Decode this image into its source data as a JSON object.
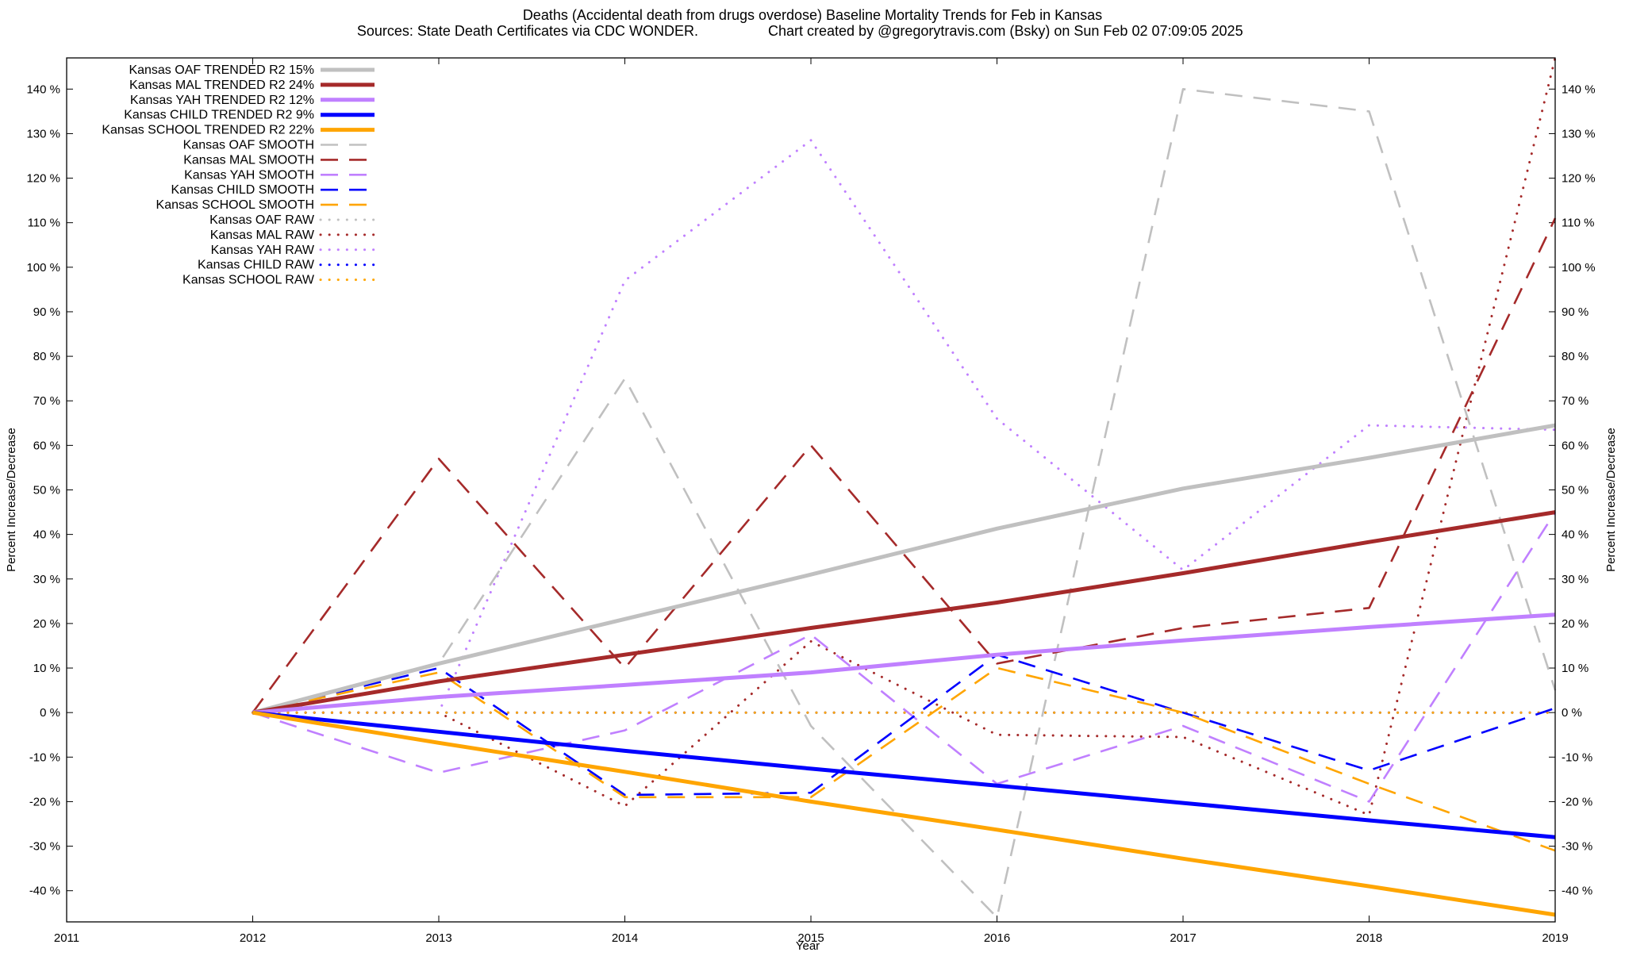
{
  "chart_data": {
    "type": "line",
    "title": "Deaths (Accidental death from drugs overdose)  Baseline Mortality Trends for Feb in Kansas",
    "subtitle_left": "Sources: State Death Certificates via CDC WONDER.",
    "subtitle_right": "Chart created by @gregorytravis.com (Bsky) on Sun Feb 02 07:09:05 2025",
    "xlabel": "Year",
    "ylabel_left": "Percent Increase/Decrease",
    "ylabel_right": "Percent Increase/Decrease",
    "xlim": [
      2011,
      2019
    ],
    "ylim": [
      -47,
      147
    ],
    "x_ticks": [
      2011,
      2012,
      2013,
      2014,
      2015,
      2016,
      2017,
      2018,
      2019
    ],
    "y_ticks": [
      -40,
      -30,
      -20,
      -10,
      0,
      10,
      20,
      30,
      40,
      50,
      60,
      70,
      80,
      90,
      100,
      110,
      120,
      130,
      140
    ],
    "y_tick_suffix": " %",
    "legend_position": "top-left",
    "series": [
      {
        "name": "Kansas OAF TRENDED R2  15%",
        "color": "#c0c0c0",
        "style": "solid",
        "x": [
          2012,
          2013,
          2014,
          2015,
          2016,
          2017,
          2018,
          2019
        ],
        "values": [
          0,
          11,
          21,
          31,
          41.3,
          50.3,
          57.2,
          64.5
        ]
      },
      {
        "name": "Kansas MAL TRENDED R2  24%",
        "color": "#a52a2a",
        "style": "solid",
        "x": [
          2012,
          2013,
          2014,
          2015,
          2016,
          2017,
          2018,
          2019
        ],
        "values": [
          0,
          7,
          13,
          19,
          24.7,
          31.3,
          38.3,
          45
        ]
      },
      {
        "name": "Kansas YAH TRENDED R2  12%",
        "color": "#c080ff",
        "style": "solid",
        "x": [
          2012,
          2013,
          2014,
          2015,
          2016,
          2017,
          2018,
          2019
        ],
        "values": [
          0,
          3.5,
          6.2,
          9,
          13,
          16.2,
          19.2,
          22
        ]
      },
      {
        "name": "Kansas CHILD TRENDED R2   9%",
        "color": "#0000ff",
        "style": "solid",
        "x": [
          2012,
          2013,
          2014,
          2015,
          2016,
          2017,
          2018,
          2019
        ],
        "values": [
          0,
          -4.3,
          -8.6,
          -12.6,
          -16.4,
          -20.3,
          -24.2,
          -28
        ]
      },
      {
        "name": "Kansas SCHOOL TRENDED R2  22%",
        "color": "#ffa500",
        "style": "solid",
        "x": [
          2012,
          2013,
          2014,
          2015,
          2016,
          2017,
          2018,
          2019
        ],
        "values": [
          0,
          -6.8,
          -13.3,
          -20,
          -26.3,
          -32.8,
          -39,
          -45.4
        ]
      },
      {
        "name": "Kansas OAF SMOOTH",
        "color": "#c0c0c0",
        "style": "dashed",
        "x": [
          2012,
          2013,
          2014,
          2015,
          2016,
          2017,
          2018,
          2019
        ],
        "values": [
          0,
          11,
          75,
          -3,
          -46,
          140,
          135,
          5
        ]
      },
      {
        "name": "Kansas MAL SMOOTH",
        "color": "#a52a2a",
        "style": "dashed",
        "x": [
          2012,
          2013,
          2014,
          2015,
          2016,
          2017,
          2018,
          2019
        ],
        "values": [
          0,
          57,
          10,
          60,
          11,
          19,
          23.5,
          111
        ]
      },
      {
        "name": "Kansas YAH SMOOTH",
        "color": "#c080ff",
        "style": "dashed",
        "x": [
          2012,
          2013,
          2014,
          2015,
          2016,
          2017,
          2018,
          2019
        ],
        "values": [
          0,
          -13.5,
          -4,
          17.5,
          -16,
          -3,
          -20,
          45
        ]
      },
      {
        "name": "Kansas CHILD SMOOTH",
        "color": "#0000ff",
        "style": "dashed",
        "x": [
          2012,
          2013,
          2014,
          2015,
          2016,
          2017,
          2018,
          2019
        ],
        "values": [
          0,
          10,
          -18.5,
          -18,
          13,
          0,
          -13,
          1
        ]
      },
      {
        "name": "Kansas SCHOOL SMOOTH",
        "color": "#ffa500",
        "style": "dashed",
        "x": [
          2012,
          2013,
          2014,
          2015,
          2016,
          2017,
          2018,
          2019
        ],
        "values": [
          0,
          9,
          -19,
          -19,
          10,
          0,
          -16,
          -31
        ]
      },
      {
        "name": "Kansas OAF RAW",
        "color": "#c0c0c0",
        "style": "dotted",
        "x": [
          2012,
          2013,
          2014,
          2015,
          2016,
          2017,
          2018,
          2019
        ],
        "values": [
          0,
          0,
          0,
          0,
          0,
          0,
          0,
          0
        ]
      },
      {
        "name": "Kansas MAL RAW",
        "color": "#a52a2a",
        "style": "dotted",
        "x": [
          2012,
          2013,
          2014,
          2015,
          2016,
          2017,
          2018,
          2019
        ],
        "values": [
          0,
          0,
          -21,
          16,
          -5,
          -5.5,
          -23,
          147
        ]
      },
      {
        "name": "Kansas YAH RAW",
        "color": "#c080ff",
        "style": "dotted",
        "x": [
          2012,
          2013,
          2014,
          2015,
          2016,
          2017,
          2018,
          2019
        ],
        "values": [
          0,
          0,
          97,
          128.5,
          66,
          32,
          64.5,
          63.5
        ]
      },
      {
        "name": "Kansas CHILD RAW",
        "color": "#0000ff",
        "style": "dotted",
        "x": [
          2012,
          2013,
          2014,
          2015,
          2016,
          2017,
          2018,
          2019
        ],
        "values": [
          0,
          0,
          0,
          0,
          0,
          0,
          0,
          0
        ]
      },
      {
        "name": "Kansas SCHOOL RAW",
        "color": "#ffa500",
        "style": "dotted",
        "x": [
          2012,
          2013,
          2014,
          2015,
          2016,
          2017,
          2018,
          2019
        ],
        "values": [
          0,
          0,
          0,
          0,
          0,
          0,
          0,
          0
        ]
      }
    ]
  }
}
